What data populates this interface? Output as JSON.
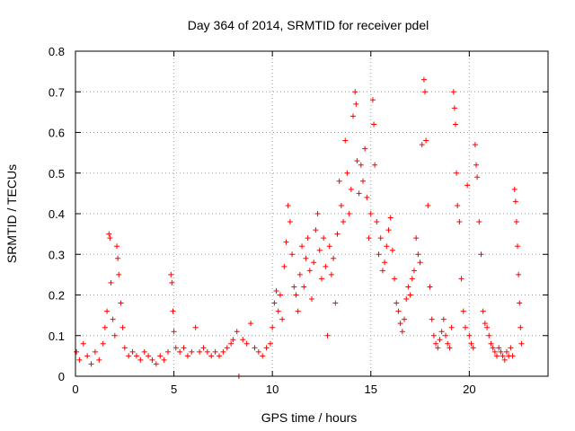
{
  "chart_data": {
    "type": "scatter",
    "title": "Day 364 of 2014, SRMTID for receiver pdel",
    "xlabel": "GPS time / hours",
    "ylabel": "SRMTID / TECUs",
    "xlim": [
      0,
      24
    ],
    "ylim": [
      0,
      0.8
    ],
    "xticks": [
      0,
      5,
      10,
      15,
      20
    ],
    "xtick_labels": [
      "0",
      "5",
      "10",
      "15",
      "20"
    ],
    "yticks": [
      0,
      0.1,
      0.2,
      0.3,
      0.4,
      0.5,
      0.6,
      0.7,
      0.8
    ],
    "ytick_labels": [
      "0",
      "0.1",
      "0.2",
      "0.3",
      "0.4",
      "0.5",
      "0.6",
      "0.7",
      "0.8"
    ],
    "grid": true,
    "marker": "plus",
    "marker_color": "#ff0000",
    "series": [
      {
        "name": "pdel",
        "points": [
          [
            0.05,
            0.06
          ],
          [
            0.2,
            0.04
          ],
          [
            0.4,
            0.08
          ],
          [
            0.6,
            0.05
          ],
          [
            0.8,
            0.03
          ],
          [
            1.0,
            0.06
          ],
          [
            1.2,
            0.04
          ],
          [
            1.4,
            0.08
          ],
          [
            1.5,
            0.12
          ],
          [
            1.6,
            0.16
          ],
          [
            1.7,
            0.35
          ],
          [
            1.75,
            0.34
          ],
          [
            1.8,
            0.23
          ],
          [
            1.9,
            0.14
          ],
          [
            2.0,
            0.1
          ],
          [
            2.1,
            0.32
          ],
          [
            2.15,
            0.29
          ],
          [
            2.2,
            0.25
          ],
          [
            2.3,
            0.18
          ],
          [
            2.4,
            0.12
          ],
          [
            2.5,
            0.07
          ],
          [
            2.7,
            0.05
          ],
          [
            2.9,
            0.06
          ],
          [
            3.1,
            0.05
          ],
          [
            3.3,
            0.04
          ],
          [
            3.5,
            0.06
          ],
          [
            3.7,
            0.05
          ],
          [
            3.9,
            0.04
          ],
          [
            4.1,
            0.03
          ],
          [
            4.3,
            0.05
          ],
          [
            4.5,
            0.04
          ],
          [
            4.7,
            0.06
          ],
          [
            4.85,
            0.25
          ],
          [
            4.9,
            0.23
          ],
          [
            4.95,
            0.16
          ],
          [
            5.0,
            0.11
          ],
          [
            5.1,
            0.07
          ],
          [
            5.3,
            0.06
          ],
          [
            5.5,
            0.07
          ],
          [
            5.7,
            0.05
          ],
          [
            5.9,
            0.06
          ],
          [
            6.1,
            0.12
          ],
          [
            6.3,
            0.06
          ],
          [
            6.5,
            0.07
          ],
          [
            6.7,
            0.06
          ],
          [
            6.9,
            0.05
          ],
          [
            7.1,
            0.06
          ],
          [
            7.3,
            0.05
          ],
          [
            7.5,
            0.06
          ],
          [
            7.7,
            0.07
          ],
          [
            7.9,
            0.08
          ],
          [
            8.0,
            0.09
          ],
          [
            8.2,
            0.11
          ],
          [
            8.3,
            0.0
          ],
          [
            8.5,
            0.09
          ],
          [
            8.7,
            0.08
          ],
          [
            8.9,
            0.13
          ],
          [
            9.1,
            0.07
          ],
          [
            9.3,
            0.06
          ],
          [
            9.5,
            0.05
          ],
          [
            9.7,
            0.07
          ],
          [
            9.9,
            0.08
          ],
          [
            10.0,
            0.12
          ],
          [
            10.1,
            0.18
          ],
          [
            10.2,
            0.21
          ],
          [
            10.3,
            0.16
          ],
          [
            10.4,
            0.2
          ],
          [
            10.5,
            0.14
          ],
          [
            10.6,
            0.27
          ],
          [
            10.7,
            0.33
          ],
          [
            10.8,
            0.42
          ],
          [
            10.9,
            0.38
          ],
          [
            11.0,
            0.3
          ],
          [
            11.1,
            0.22
          ],
          [
            11.2,
            0.2
          ],
          [
            11.3,
            0.16
          ],
          [
            11.4,
            0.25
          ],
          [
            11.5,
            0.32
          ],
          [
            11.6,
            0.22
          ],
          [
            11.7,
            0.29
          ],
          [
            11.8,
            0.34
          ],
          [
            11.9,
            0.26
          ],
          [
            12.0,
            0.19
          ],
          [
            12.1,
            0.28
          ],
          [
            12.2,
            0.36
          ],
          [
            12.3,
            0.4
          ],
          [
            12.4,
            0.31
          ],
          [
            12.5,
            0.24
          ],
          [
            12.6,
            0.34
          ],
          [
            12.7,
            0.27
          ],
          [
            12.8,
            0.1
          ],
          [
            12.9,
            0.32
          ],
          [
            13.0,
            0.25
          ],
          [
            13.1,
            0.29
          ],
          [
            13.2,
            0.18
          ],
          [
            13.3,
            0.35
          ],
          [
            13.4,
            0.48
          ],
          [
            13.5,
            0.42
          ],
          [
            13.6,
            0.38
          ],
          [
            13.7,
            0.58
          ],
          [
            13.8,
            0.5
          ],
          [
            13.9,
            0.4
          ],
          [
            14.0,
            0.46
          ],
          [
            14.1,
            0.64
          ],
          [
            14.2,
            0.7
          ],
          [
            14.25,
            0.67
          ],
          [
            14.3,
            0.53
          ],
          [
            14.4,
            0.45
          ],
          [
            14.5,
            0.52
          ],
          [
            14.6,
            0.48
          ],
          [
            14.7,
            0.56
          ],
          [
            14.8,
            0.44
          ],
          [
            14.9,
            0.34
          ],
          [
            15.0,
            0.4
          ],
          [
            15.1,
            0.68
          ],
          [
            15.15,
            0.62
          ],
          [
            15.2,
            0.52
          ],
          [
            15.3,
            0.38
          ],
          [
            15.4,
            0.3
          ],
          [
            15.5,
            0.34
          ],
          [
            15.6,
            0.26
          ],
          [
            15.7,
            0.28
          ],
          [
            15.8,
            0.32
          ],
          [
            15.9,
            0.36
          ],
          [
            16.0,
            0.39
          ],
          [
            16.1,
            0.31
          ],
          [
            16.2,
            0.24
          ],
          [
            16.3,
            0.18
          ],
          [
            16.4,
            0.16
          ],
          [
            16.5,
            0.13
          ],
          [
            16.6,
            0.11
          ],
          [
            16.7,
            0.14
          ],
          [
            16.8,
            0.19
          ],
          [
            16.9,
            0.22
          ],
          [
            17.0,
            0.2
          ],
          [
            17.1,
            0.24
          ],
          [
            17.2,
            0.26
          ],
          [
            17.3,
            0.34
          ],
          [
            17.4,
            0.3
          ],
          [
            17.5,
            0.28
          ],
          [
            17.6,
            0.57
          ],
          [
            17.7,
            0.73
          ],
          [
            17.75,
            0.7
          ],
          [
            17.8,
            0.58
          ],
          [
            17.9,
            0.42
          ],
          [
            18.0,
            0.22
          ],
          [
            18.1,
            0.14
          ],
          [
            18.2,
            0.1
          ],
          [
            18.3,
            0.08
          ],
          [
            18.4,
            0.07
          ],
          [
            18.5,
            0.09
          ],
          [
            18.6,
            0.11
          ],
          [
            18.7,
            0.14
          ],
          [
            18.8,
            0.1
          ],
          [
            18.9,
            0.08
          ],
          [
            19.0,
            0.07
          ],
          [
            19.1,
            0.12
          ],
          [
            19.2,
            0.7
          ],
          [
            19.25,
            0.66
          ],
          [
            19.3,
            0.62
          ],
          [
            19.35,
            0.5
          ],
          [
            19.4,
            0.42
          ],
          [
            19.5,
            0.38
          ],
          [
            19.6,
            0.24
          ],
          [
            19.7,
            0.16
          ],
          [
            19.8,
            0.12
          ],
          [
            19.9,
            0.47
          ],
          [
            20.0,
            0.1
          ],
          [
            20.1,
            0.08
          ],
          [
            20.2,
            0.07
          ],
          [
            20.3,
            0.57
          ],
          [
            20.35,
            0.52
          ],
          [
            20.4,
            0.49
          ],
          [
            20.5,
            0.38
          ],
          [
            20.6,
            0.3
          ],
          [
            20.7,
            0.16
          ],
          [
            20.8,
            0.13
          ],
          [
            20.9,
            0.12
          ],
          [
            21.0,
            0.1
          ],
          [
            21.1,
            0.08
          ],
          [
            21.2,
            0.07
          ],
          [
            21.3,
            0.06
          ],
          [
            21.4,
            0.05
          ],
          [
            21.5,
            0.07
          ],
          [
            21.6,
            0.06
          ],
          [
            21.7,
            0.05
          ],
          [
            21.8,
            0.04
          ],
          [
            21.9,
            0.06
          ],
          [
            22.0,
            0.05
          ],
          [
            22.1,
            0.07
          ],
          [
            22.2,
            0.05
          ],
          [
            22.3,
            0.46
          ],
          [
            22.35,
            0.43
          ],
          [
            22.4,
            0.38
          ],
          [
            22.45,
            0.32
          ],
          [
            22.5,
            0.25
          ],
          [
            22.55,
            0.18
          ],
          [
            22.6,
            0.12
          ],
          [
            22.65,
            0.08
          ]
        ]
      }
    ]
  }
}
